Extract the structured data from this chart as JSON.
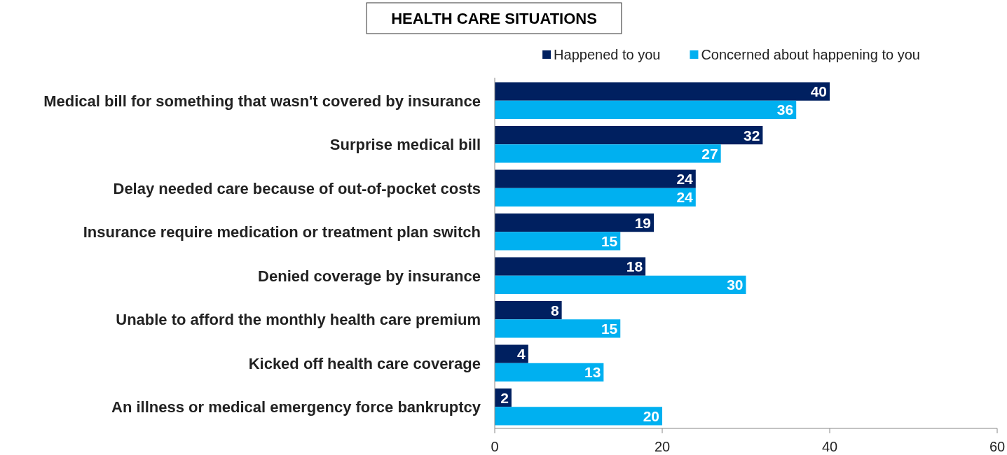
{
  "chart_data": {
    "type": "bar",
    "orientation": "horizontal",
    "title": "HEALTH CARE SITUATIONS",
    "categories": [
      "Medical bill for something that wasn't covered by insurance",
      "Surprise medical bill",
      "Delay needed care because of out-of-pocket costs",
      "Insurance require medication or treatment plan switch",
      "Denied coverage by insurance",
      "Unable to afford the monthly health care premium",
      "Kicked off health care coverage",
      "An illness or medical emergency force bankruptcy"
    ],
    "series": [
      {
        "name": "Happened to you",
        "color": "#002060",
        "values": [
          40,
          32,
          24,
          19,
          18,
          8,
          4,
          2
        ]
      },
      {
        "name": "Concerned about happening to you",
        "color": "#00b0f0",
        "values": [
          36,
          27,
          24,
          15,
          30,
          15,
          13,
          20
        ]
      }
    ],
    "xlim": [
      0,
      60
    ],
    "xticks": [
      0,
      20,
      40,
      60
    ],
    "grid": false,
    "legend": "top",
    "data_labels": true
  }
}
